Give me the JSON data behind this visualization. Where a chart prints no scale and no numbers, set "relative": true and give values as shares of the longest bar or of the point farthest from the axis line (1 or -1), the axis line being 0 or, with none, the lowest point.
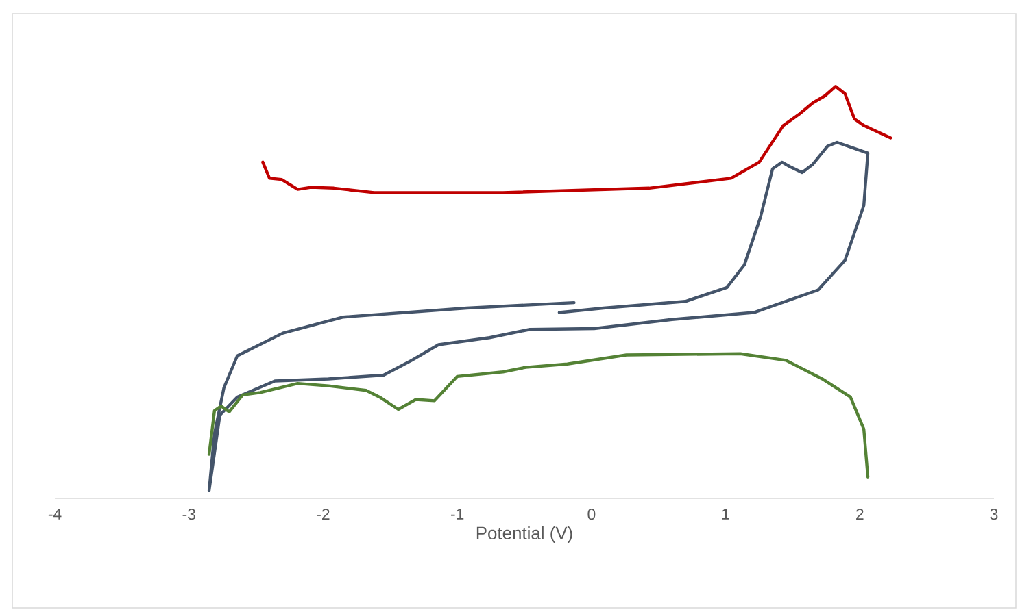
{
  "chart_data": {
    "type": "line",
    "xlabel": "Potential (V)",
    "relative": true,
    "xlim": [
      -4,
      3
    ],
    "xticks": [
      -4,
      -3,
      -2,
      -1,
      0,
      1,
      2,
      3
    ],
    "series": [
      {
        "color": "#c00000",
        "x": [
          -2.45,
          -2.4,
          -2.31,
          -2.19,
          -2.09,
          -1.92,
          -1.62,
          -0.66,
          0.43,
          1.04,
          1.25,
          1.43,
          1.55,
          1.65,
          1.74,
          1.82,
          1.89,
          1.96,
          2.03,
          2.23
        ],
        "values": [
          0.816,
          0.777,
          0.774,
          0.75,
          0.755,
          0.753,
          0.742,
          0.742,
          0.753,
          0.777,
          0.816,
          0.905,
          0.933,
          0.96,
          0.977,
          1.0,
          0.982,
          0.921,
          0.905,
          0.875
        ]
      },
      {
        "color": "#44546a",
        "x": [
          -0.13,
          -0.93,
          -1.85,
          -2.3,
          -2.64,
          -2.74,
          -2.81,
          -2.85,
          -2.77,
          -2.64,
          -2.36,
          -1.96,
          -1.55,
          -1.34,
          -1.14,
          -0.76,
          -0.46,
          0.02,
          0.6,
          1.21,
          1.69,
          1.89,
          2.03,
          2.06,
          1.83,
          1.76,
          1.65,
          1.57,
          1.48,
          1.42,
          1.35,
          1.26,
          1.14,
          1.01,
          0.7,
          0.09,
          -0.24
        ],
        "values": [
          0.475,
          0.462,
          0.44,
          0.401,
          0.346,
          0.268,
          0.157,
          0.019,
          0.202,
          0.246,
          0.285,
          0.29,
          0.299,
          0.335,
          0.373,
          0.39,
          0.41,
          0.412,
          0.434,
          0.451,
          0.506,
          0.578,
          0.711,
          0.838,
          0.864,
          0.855,
          0.811,
          0.791,
          0.805,
          0.816,
          0.8,
          0.683,
          0.567,
          0.512,
          0.478,
          0.462,
          0.451
        ]
      },
      {
        "color": "#548235",
        "x": [
          -2.85,
          -2.81,
          -2.76,
          -2.7,
          -2.6,
          -2.47,
          -2.19,
          -1.96,
          -1.68,
          -1.58,
          -1.44,
          -1.31,
          -1.17,
          -1.0,
          -0.66,
          -0.49,
          -0.18,
          0.26,
          1.11,
          1.45,
          1.72,
          1.93,
          2.03,
          2.06
        ],
        "values": [
          0.107,
          0.213,
          0.224,
          0.21,
          0.251,
          0.257,
          0.279,
          0.273,
          0.262,
          0.246,
          0.216,
          0.24,
          0.237,
          0.296,
          0.307,
          0.318,
          0.326,
          0.348,
          0.351,
          0.335,
          0.29,
          0.246,
          0.168,
          0.052
        ]
      }
    ]
  }
}
